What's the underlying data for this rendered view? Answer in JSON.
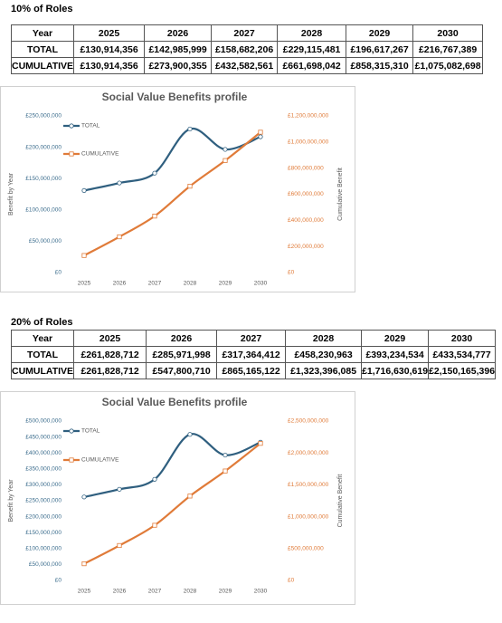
{
  "sections": [
    {
      "heading": "10% of Roles",
      "table": {
        "header": [
          "Year",
          "2025",
          "2026",
          "2027",
          "2028",
          "2029",
          "2030"
        ],
        "rows": [
          [
            "TOTAL",
            "£130,914,356",
            "£142,985,999",
            "£158,682,206",
            "£229,115,481",
            "£196,617,267",
            "£216,767,389"
          ],
          [
            "CUMULATIVE",
            "£130,914,356",
            "£273,900,355",
            "£432,582,561",
            "£661,698,042",
            "£858,315,310",
            "£1,075,082,698"
          ]
        ]
      }
    },
    {
      "heading": "20% of Roles",
      "table": {
        "header": [
          "Year",
          "2025",
          "2026",
          "2027",
          "2028",
          "2029",
          "2030"
        ],
        "rows": [
          [
            "TOTAL",
            "£261,828,712",
            "£285,971,998",
            "£317,364,412",
            "£458,230,963",
            "£393,234,534",
            "£433,534,777"
          ],
          [
            "CUMULATIVE",
            "£261,828,712",
            "£547,800,710",
            "£865,165,122",
            "£1,323,396,085",
            "£1,716,630,619",
            "£2,150,165,396"
          ]
        ]
      }
    }
  ],
  "chart_data": [
    {
      "type": "line",
      "title": "Social Value Benefits profile",
      "y_label": "Benefit by Year",
      "y2_label": "Cumulative Benefit",
      "categories": [
        "2025",
        "2026",
        "2027",
        "2028",
        "2029",
        "2030"
      ],
      "series": [
        {
          "name": "TOTAL",
          "color": "#2f5f7f",
          "values": [
            130914356,
            142985999,
            158682206,
            229115481,
            196617267,
            216767389
          ]
        },
        {
          "name": "CUMULATIVE",
          "color": "#e07b39",
          "axis": "y2",
          "values": [
            130914356,
            273900355,
            432582561,
            661698042,
            858315310,
            1075082698
          ]
        }
      ],
      "ylim": [
        0,
        250000000
      ],
      "yticks": [
        {
          "value": 0,
          "label": "£0"
        },
        {
          "value": 50000000,
          "label": "£50,000,000"
        },
        {
          "value": 100000000,
          "label": "£100,000,000"
        },
        {
          "value": 150000000,
          "label": "£150,000,000"
        },
        {
          "value": 200000000,
          "label": "£200,000,000"
        },
        {
          "value": 250000000,
          "label": "£250,000,000"
        }
      ],
      "y2lim": [
        0,
        1200000000
      ],
      "y2ticks": [
        {
          "value": 0,
          "label": "£0"
        },
        {
          "value": 200000000,
          "label": "£200,000,000"
        },
        {
          "value": 400000000,
          "label": "£400,000,000"
        },
        {
          "value": 600000000,
          "label": "£600,000,000"
        },
        {
          "value": 800000000,
          "label": "£800,000,000"
        },
        {
          "value": 1000000000,
          "label": "£1,000,000,000"
        },
        {
          "value": 1200000000,
          "label": "£1,200,000,000"
        }
      ],
      "legend": "top-left"
    },
    {
      "type": "line",
      "title": "Social Value Benefits profile",
      "y_label": "Benefit by Year",
      "y2_label": "Cumulative Benefit",
      "categories": [
        "2025",
        "2026",
        "2027",
        "2028",
        "2029",
        "2030"
      ],
      "series": [
        {
          "name": "TOTAL",
          "color": "#2f5f7f",
          "values": [
            261828712,
            285971998,
            317364412,
            458230963,
            393234534,
            433534777
          ]
        },
        {
          "name": "CUMULATIVE",
          "color": "#e07b39",
          "axis": "y2",
          "values": [
            261828712,
            547800710,
            865165122,
            1323396085,
            1716630619,
            2150165396
          ]
        }
      ],
      "ylim": [
        0,
        500000000
      ],
      "yticks": [
        {
          "value": 0,
          "label": "£0"
        },
        {
          "value": 50000000,
          "label": "£50,000,000"
        },
        {
          "value": 100000000,
          "label": "£100,000,000"
        },
        {
          "value": 150000000,
          "label": "£150,000,000"
        },
        {
          "value": 200000000,
          "label": "£200,000,000"
        },
        {
          "value": 250000000,
          "label": "£250,000,000"
        },
        {
          "value": 300000000,
          "label": "£300,000,000"
        },
        {
          "value": 350000000,
          "label": "£350,000,000"
        },
        {
          "value": 400000000,
          "label": "£400,000,000"
        },
        {
          "value": 450000000,
          "label": "£450,000,000"
        },
        {
          "value": 500000000,
          "label": "£500,000,000"
        }
      ],
      "y2lim": [
        0,
        2500000000
      ],
      "y2ticks": [
        {
          "value": 0,
          "label": "£0"
        },
        {
          "value": 500000000,
          "label": "£500,000,000"
        },
        {
          "value": 1000000000,
          "label": "£1,000,000,000"
        },
        {
          "value": 1500000000,
          "label": "£1,500,000,000"
        },
        {
          "value": 2000000000,
          "label": "£2,000,000,000"
        },
        {
          "value": 2500000000,
          "label": "£2,500,000,000"
        }
      ],
      "legend": "top-left"
    }
  ]
}
